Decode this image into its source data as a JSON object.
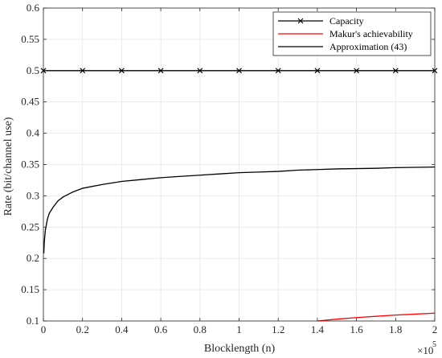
{
  "chart_data": {
    "type": "line",
    "xlabel": "Blocklength (n)",
    "ylabel": "Rate (bit/channel use)",
    "xlim": [
      0,
      200000
    ],
    "ylim": [
      0.1,
      0.6
    ],
    "x_ticks": [
      "0",
      "0.2",
      "0.4",
      "0.6",
      "0.8",
      "1",
      "1.2",
      "1.4",
      "1.6",
      "1.8",
      "2"
    ],
    "x_tick_values": [
      0,
      20000,
      40000,
      60000,
      80000,
      100000,
      120000,
      140000,
      160000,
      180000,
      200000
    ],
    "x_exponent_base": "×10",
    "x_exponent_power": "5",
    "y_ticks": [
      "0.1",
      "0.15",
      "0.2",
      "0.25",
      "0.3",
      "0.35",
      "0.4",
      "0.45",
      "0.5",
      "0.55",
      "0.6"
    ],
    "y_tick_values": [
      0.1,
      0.15,
      0.2,
      0.25,
      0.3,
      0.35,
      0.4,
      0.45,
      0.5,
      0.55,
      0.6
    ],
    "grid": true,
    "legend_position": "top-right",
    "series": [
      {
        "name": "Capacity",
        "color": "#000000",
        "marker": "x",
        "x": [
          0,
          20000,
          40000,
          60000,
          80000,
          100000,
          120000,
          140000,
          160000,
          180000,
          200000
        ],
        "y": [
          0.5,
          0.5,
          0.5,
          0.5,
          0.5,
          0.5,
          0.5,
          0.5,
          0.5,
          0.5,
          0.5
        ]
      },
      {
        "name": "Makur's achievability",
        "color": "#ff0000",
        "marker": "none",
        "x": [
          140000,
          150000,
          160000,
          170000,
          180000,
          190000,
          200000
        ],
        "y": [
          0.1,
          0.103,
          0.1055,
          0.1075,
          0.1095,
          0.111,
          0.1125
        ]
      },
      {
        "name": "Approximation (43)",
        "color": "#000000",
        "marker": "none",
        "x": [
          200,
          500,
          1000,
          2000,
          3000,
          5000,
          7500,
          10000,
          15000,
          20000,
          30000,
          40000,
          50000,
          60000,
          70000,
          80000,
          90000,
          100000,
          110000,
          120000,
          130000,
          140000,
          150000,
          160000,
          170000,
          180000,
          190000,
          200000
        ],
        "y": [
          0.208,
          0.228,
          0.245,
          0.262,
          0.272,
          0.282,
          0.292,
          0.298,
          0.306,
          0.312,
          0.318,
          0.323,
          0.326,
          0.329,
          0.331,
          0.333,
          0.335,
          0.337,
          0.338,
          0.339,
          0.341,
          0.342,
          0.343,
          0.3435,
          0.344,
          0.345,
          0.3455,
          0.346
        ]
      }
    ]
  }
}
